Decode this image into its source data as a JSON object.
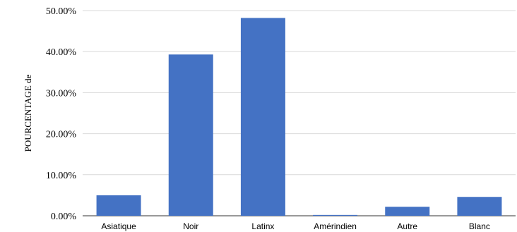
{
  "chart_data": {
    "type": "bar",
    "title": "",
    "xlabel": "",
    "ylabel": "POURCENTAGE de",
    "categories": [
      "Asiatique",
      "Noir",
      "Latinx",
      "Amérindien",
      "Autre",
      "Blanc"
    ],
    "values": [
      5.0,
      39.3,
      48.2,
      0.2,
      2.2,
      4.6
    ],
    "ylim": [
      0,
      50
    ],
    "yticks": [
      0,
      10,
      20,
      30,
      40,
      50
    ],
    "ytick_labels": [
      "0.00%",
      "10.00%",
      "20.00%",
      "30.00%",
      "40.00%",
      "50.00%"
    ],
    "grid": true,
    "legend": "none",
    "colors": {
      "bar": "#4472c4",
      "grid": "#d9d9d9",
      "baseline": "#333333"
    }
  }
}
